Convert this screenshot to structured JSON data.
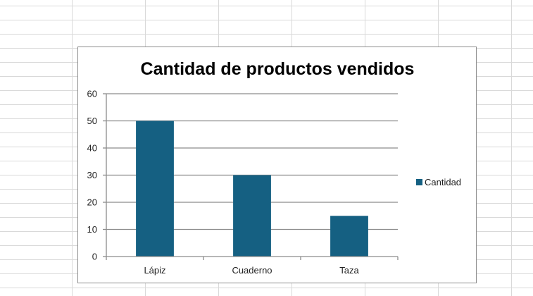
{
  "chart_data": {
    "type": "bar",
    "title": "Cantidad de productos vendidos",
    "categories": [
      "Lápiz",
      "Cuaderno",
      "Taza"
    ],
    "series": [
      {
        "name": "Cantidad",
        "values": [
          50,
          30,
          15
        ],
        "color": "#156082"
      }
    ],
    "ylim": [
      0,
      60
    ],
    "yticks": [
      0,
      10,
      20,
      30,
      40,
      50,
      60
    ],
    "grid": true,
    "legend": "right"
  }
}
